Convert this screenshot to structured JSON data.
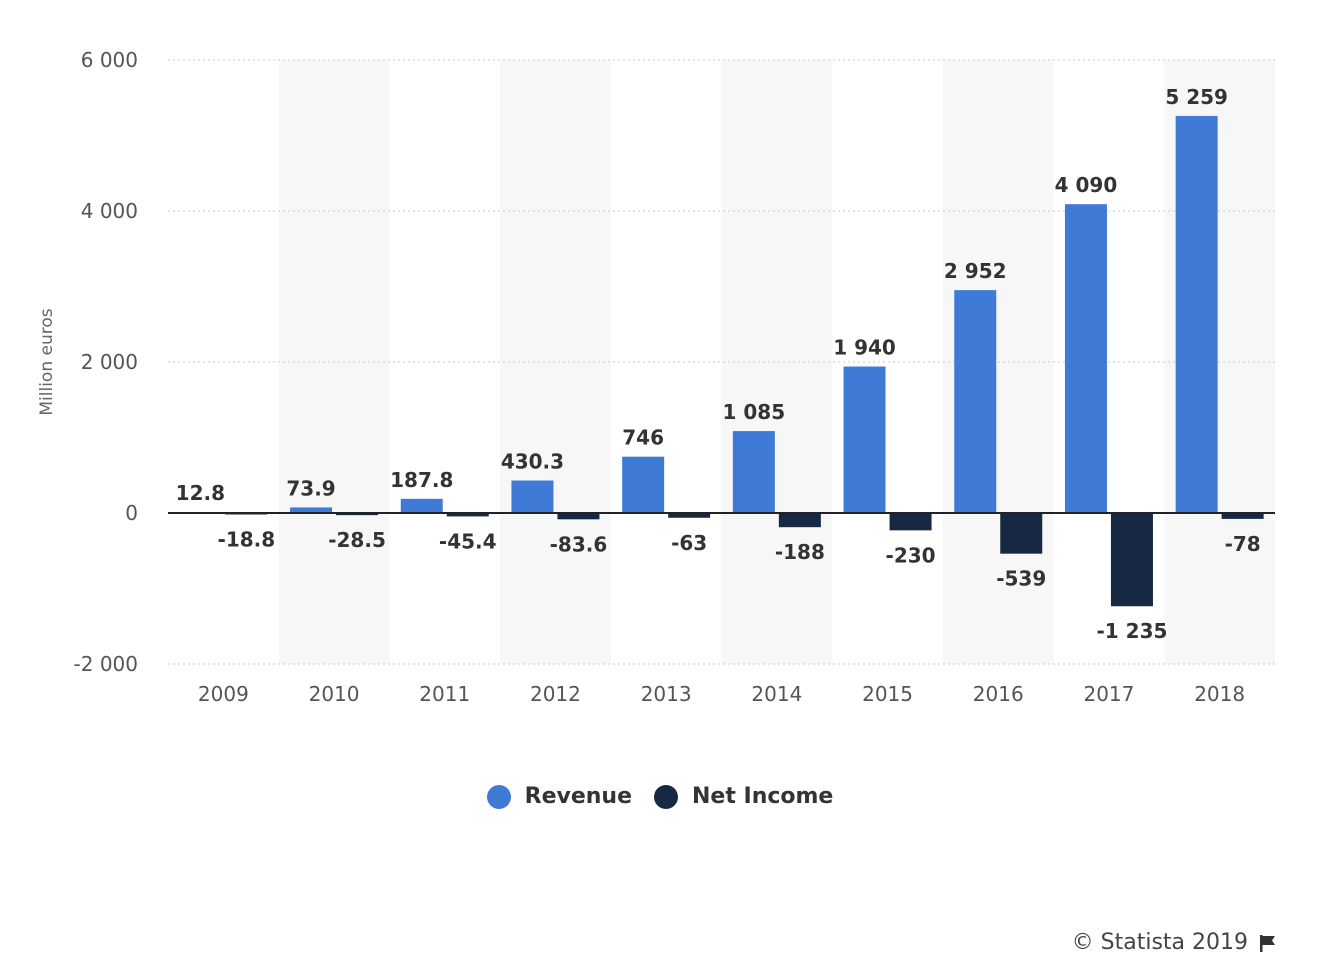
{
  "chart_data": {
    "type": "bar",
    "categories": [
      "2009",
      "2010",
      "2011",
      "2012",
      "2013",
      "2014",
      "2015",
      "2016",
      "2017",
      "2018"
    ],
    "series": [
      {
        "name": "Revenue",
        "color": "#3f7ad7",
        "values": [
          12.8,
          73.9,
          187.8,
          430.3,
          746,
          1085,
          1940,
          2952,
          4090,
          5259
        ],
        "labels": [
          "12.8",
          "73.9",
          "187.8",
          "430.3",
          "746",
          "1 085",
          "1 940",
          "2 952",
          "4 090",
          "5 259"
        ]
      },
      {
        "name": "Net Income",
        "color": "#172843",
        "values": [
          -18.8,
          -28.5,
          -45.4,
          -83.6,
          -63,
          -188,
          -230,
          -539,
          -1235,
          -78
        ],
        "labels": [
          "-18.8",
          "-28.5",
          "-45.4",
          "-83.6",
          "-63",
          "-188",
          "-230",
          "-539",
          "-1 235",
          "-78"
        ]
      }
    ],
    "ylabel": "Million euros",
    "ylim": [
      -2000,
      6000
    ],
    "yticks": [
      6000,
      4000,
      2000,
      0,
      -2000
    ],
    "ytick_labels": [
      "6 000",
      "4 000",
      "2 000",
      "0",
      "-2 000"
    ],
    "grid": true,
    "legend_position": "bottom-center"
  },
  "legend": {
    "revenue_label": "Revenue",
    "net_income_label": "Net Income"
  },
  "credit": {
    "text": "© Statista 2019",
    "icon": "flag-icon"
  }
}
